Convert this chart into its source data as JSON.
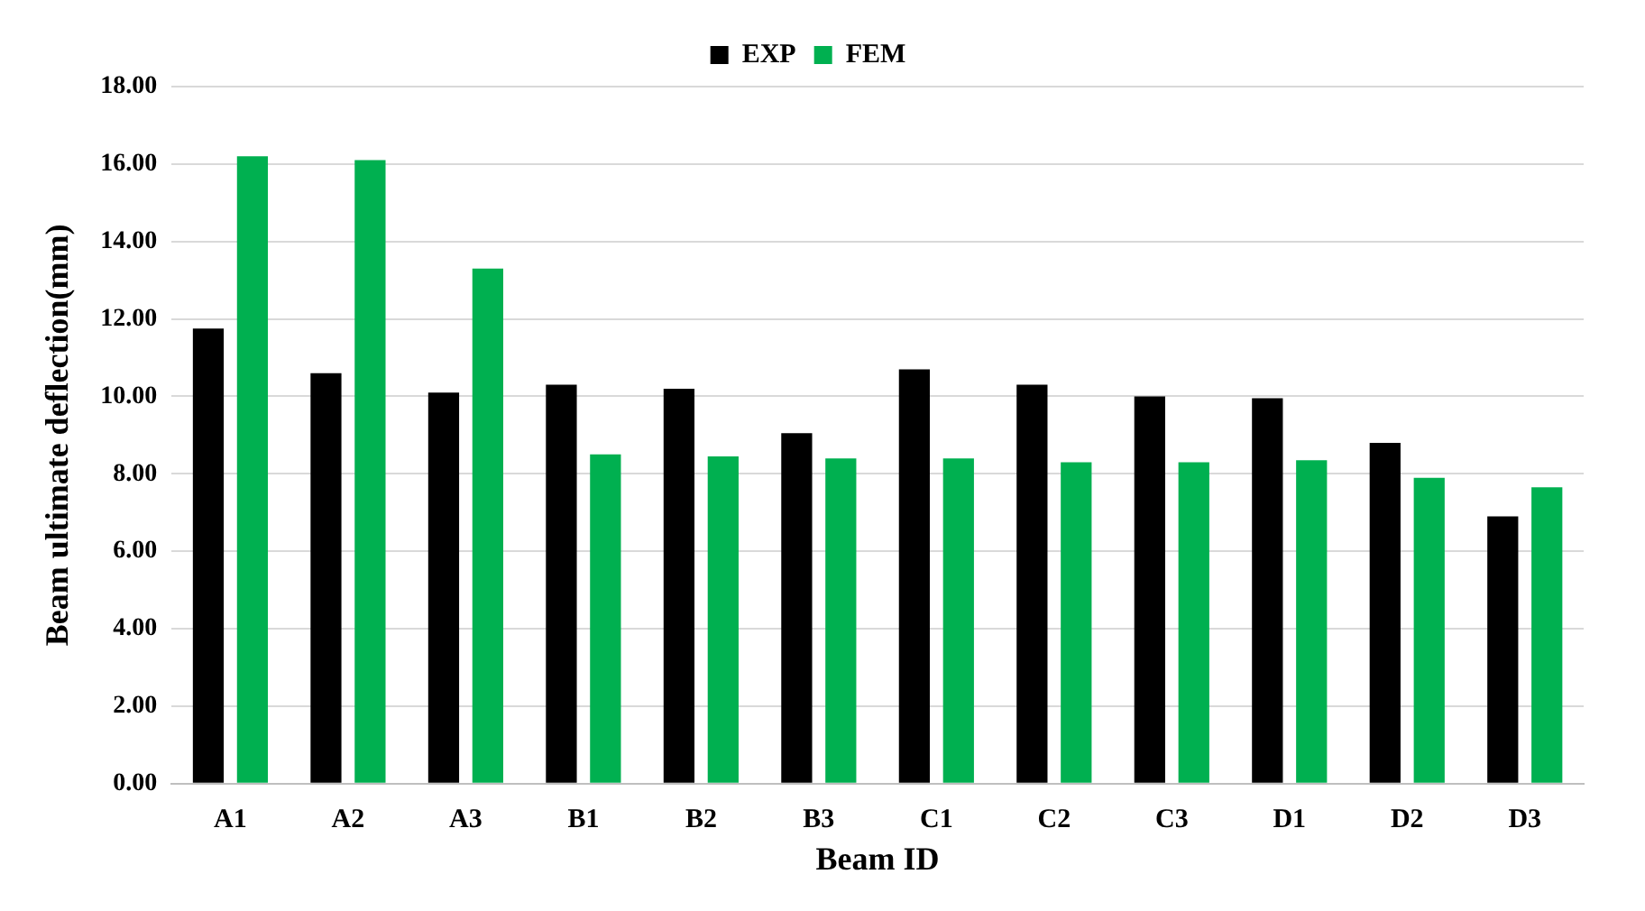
{
  "chart_data": {
    "type": "bar",
    "xlabel": "Beam ID",
    "ylabel": "Beam ultimate deflection(mm)",
    "categories": [
      "A1",
      "A2",
      "A3",
      "B1",
      "B2",
      "B3",
      "C1",
      "C2",
      "C3",
      "D1",
      "D2",
      "D3"
    ],
    "series": [
      {
        "name": "EXP",
        "color": "#000000",
        "values": [
          11.75,
          10.6,
          10.1,
          10.3,
          10.2,
          9.05,
          10.7,
          10.3,
          10.0,
          9.95,
          8.8,
          6.9
        ]
      },
      {
        "name": "FEM",
        "color": "#00b050",
        "values": [
          16.2,
          16.1,
          13.3,
          8.5,
          8.45,
          8.4,
          8.4,
          8.3,
          8.3,
          8.35,
          7.9,
          7.65
        ]
      }
    ],
    "ylim": [
      0,
      18
    ],
    "yticks": [
      {
        "value": 0,
        "label": "0.00"
      },
      {
        "value": 2,
        "label": "2.00"
      },
      {
        "value": 4,
        "label": "4.00"
      },
      {
        "value": 6,
        "label": "6.00"
      },
      {
        "value": 8,
        "label": "8.00"
      },
      {
        "value": 10,
        "label": "10.00"
      },
      {
        "value": 12,
        "label": "12.00"
      },
      {
        "value": 14,
        "label": "14.00"
      },
      {
        "value": 16,
        "label": "16.00"
      },
      {
        "value": 18,
        "label": "18.00"
      }
    ],
    "grid": "y",
    "legend": "top"
  }
}
